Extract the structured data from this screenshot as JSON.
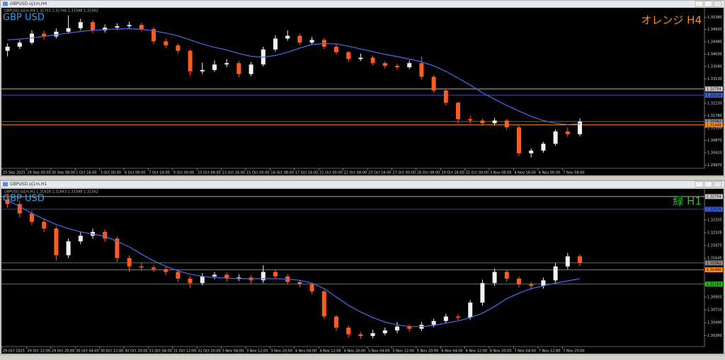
{
  "chart_data": [
    {
      "type": "candlestick",
      "window_title": "GBPUSD.oj1m,H4",
      "info": "GBPUSD.oj1m,H4  1.31701 1.31746 1.31588 1.31562",
      "symbol_label": "GBP USD",
      "annotation": "オレンジ H4",
      "annotation_color": "#ff8c1a",
      "up_color": "#f2f2f2",
      "down_color": "#ff5a1f",
      "ma_color": "#4a6cf0",
      "open": [
        1.3415,
        1.343,
        1.3445,
        1.3478,
        1.3468,
        1.3485,
        1.3498,
        1.352,
        1.349,
        1.35,
        1.3505,
        1.351,
        1.3495,
        1.345,
        1.3435,
        1.3415,
        1.334,
        1.3345,
        1.3365,
        1.337,
        1.333,
        1.3365,
        1.342,
        1.346,
        1.347,
        1.3445,
        1.3455,
        1.343,
        1.341,
        1.3385,
        1.339,
        1.337,
        1.336,
        1.3355,
        1.337,
        1.332,
        1.327,
        1.3225,
        1.3165,
        1.316,
        1.315,
        1.316,
        1.3135,
        1.304,
        1.305,
        1.3075,
        1.312,
        1.311
      ],
      "high": [
        1.3442,
        1.3455,
        1.349,
        1.3488,
        1.3497,
        1.3545,
        1.3532,
        1.3528,
        1.3512,
        1.3516,
        1.3522,
        1.3518,
        1.3502,
        1.346,
        1.3442,
        1.342,
        1.3372,
        1.338,
        1.3385,
        1.3378,
        1.3374,
        1.343,
        1.3472,
        1.349,
        1.3478,
        1.3466,
        1.3462,
        1.3438,
        1.3415,
        1.3405,
        1.3398,
        1.3378,
        1.3368,
        1.338,
        1.3395,
        1.3325,
        1.3276,
        1.323,
        1.3178,
        1.3168,
        1.317,
        1.3166,
        1.3142,
        1.3058,
        1.3082,
        1.3128,
        1.3136,
        1.3168
      ],
      "low": [
        1.3395,
        1.3422,
        1.3438,
        1.3455,
        1.346,
        1.3478,
        1.349,
        1.348,
        1.3482,
        1.3492,
        1.3498,
        1.3486,
        1.344,
        1.3426,
        1.3405,
        1.3325,
        1.333,
        1.3338,
        1.3355,
        1.3318,
        1.3322,
        1.3358,
        1.3412,
        1.3452,
        1.3436,
        1.3438,
        1.3422,
        1.3402,
        1.3375,
        1.3378,
        1.3362,
        1.335,
        1.3345,
        1.3348,
        1.331,
        1.3262,
        1.3215,
        1.315,
        1.3148,
        1.314,
        1.3142,
        1.3125,
        1.303,
        1.3025,
        1.3042,
        1.3068,
        1.31,
        1.3102
      ],
      "close": [
        1.343,
        1.3445,
        1.3478,
        1.3468,
        1.3485,
        1.3498,
        1.352,
        1.349,
        1.35,
        1.3505,
        1.351,
        1.3495,
        1.345,
        1.3435,
        1.3415,
        1.334,
        1.3345,
        1.3365,
        1.337,
        1.333,
        1.3365,
        1.342,
        1.346,
        1.347,
        1.3445,
        1.3455,
        1.343,
        1.341,
        1.3385,
        1.339,
        1.337,
        1.336,
        1.3355,
        1.337,
        1.332,
        1.327,
        1.3225,
        1.3165,
        1.316,
        1.315,
        1.316,
        1.3135,
        1.304,
        1.305,
        1.3075,
        1.312,
        1.311,
        1.3156
      ],
      "ma": [
        1.3455,
        1.3458,
        1.3462,
        1.3468,
        1.3474,
        1.348,
        1.3486,
        1.349,
        1.3493,
        1.3495,
        1.3496,
        1.3494,
        1.3488,
        1.348,
        1.347,
        1.3455,
        1.344,
        1.3428,
        1.3418,
        1.3405,
        1.3395,
        1.3392,
        1.3398,
        1.341,
        1.3425,
        1.3438,
        1.3442,
        1.344,
        1.3432,
        1.3422,
        1.3412,
        1.3402,
        1.3394,
        1.3385,
        1.3375,
        1.336,
        1.334,
        1.3315,
        1.329,
        1.3262,
        1.3238,
        1.3215,
        1.3195,
        1.3175,
        1.316,
        1.315,
        1.3145,
        1.3148
      ],
      "ylim": [
        1.2985,
        1.357
      ],
      "yticks": [
        {
          "value": 1.3538,
          "label": "1.35380"
        },
        {
          "value": 1.3493,
          "label": "1.34930"
        },
        {
          "value": 1.3448,
          "label": "1.34480"
        },
        {
          "value": 1.3403,
          "label": "1.34030"
        },
        {
          "value": 1.3358,
          "label": "1.33580"
        },
        {
          "value": 1.3313,
          "label": "1.33130"
        },
        {
          "value": 1.3223,
          "label": "1.32230"
        },
        {
          "value": 1.3178,
          "label": "1.31780"
        },
        {
          "value": 1.3133,
          "label": "1.31330"
        },
        {
          "value": 1.3087,
          "label": "1.30870"
        },
        {
          "value": 1.3042,
          "label": "1.30420"
        },
        {
          "value": 1.2997,
          "label": "1.29970"
        }
      ],
      "xticks": [
        {
          "value": 0,
          "label": "25 Sep 2025"
        },
        {
          "value": 2,
          "label": "29 Sep 00:00"
        },
        {
          "value": 4,
          "label": "30 Sep 08:00"
        },
        {
          "value": 6,
          "label": "1 Oct 16:00"
        },
        {
          "value": 8,
          "label": "3 Oct 00:00"
        },
        {
          "value": 10,
          "label": "6 Oct 08:00"
        },
        {
          "value": 12,
          "label": "7 Oct 16:00"
        },
        {
          "value": 14,
          "label": "9 Oct 00:00"
        },
        {
          "value": 16,
          "label": "10 Oct 08:00"
        },
        {
          "value": 18,
          "label": "13 Oct 16:00"
        },
        {
          "value": 20,
          "label": "15 Oct 00:00"
        },
        {
          "value": 22,
          "label": "16 Oct 08:00"
        },
        {
          "value": 24,
          "label": "17 Oct 16:00"
        },
        {
          "value": 26,
          "label": "21 Oct 00:00"
        },
        {
          "value": 28,
          "label": "22 Oct 08:00"
        },
        {
          "value": 30,
          "label": "23 Oct 16:00"
        },
        {
          "value": 32,
          "label": "27 Oct 00:00"
        },
        {
          "value": 34,
          "label": "28 Oct 08:00"
        },
        {
          "value": 36,
          "label": "29 Oct 16:00"
        },
        {
          "value": 38,
          "label": "31 Oct 00:00"
        },
        {
          "value": 40,
          "label": "3 Nov 08:00"
        },
        {
          "value": 42,
          "label": "4 Nov 16:00"
        },
        {
          "value": 44,
          "label": "6 Nov 00:00"
        },
        {
          "value": 46,
          "label": "7 Nov 08:00"
        }
      ],
      "levels": [
        {
          "value": 1.32754,
          "color": "#c8c8c8"
        },
        {
          "value": 1.32526,
          "color": "#3a5fd8"
        },
        {
          "value": 1.31562,
          "color": "#8a8a8a"
        },
        {
          "value": 1.3144,
          "label": "1.31440",
          "color": "#ff8c1a"
        }
      ]
    },
    {
      "type": "candlestick",
      "window_title": "GBPUSD.oj1m,H1",
      "info": "GBPUSD.oj1m,H1  1.31618 1.31643 1.31588 1.31562",
      "symbol_label": "GBP USD",
      "annotation": "緑 H1",
      "annotation_color": "#2fbf2f",
      "up_color": "#f2f2f2",
      "down_color": "#ff5a1f",
      "ma_color": "#4a6cf0",
      "open": [
        1.327,
        1.3262,
        1.3245,
        1.323,
        1.3218,
        1.317,
        1.3195,
        1.3205,
        1.3212,
        1.32,
        1.3165,
        1.315,
        1.3148,
        1.3145,
        1.314,
        1.3128,
        1.312,
        1.3132,
        1.3135,
        1.3128,
        1.313,
        1.3125,
        1.314,
        1.3132,
        1.3122,
        1.3118,
        1.3105,
        1.306,
        1.304,
        1.3028,
        1.3025,
        1.303,
        1.3035,
        1.3042,
        1.3038,
        1.3045,
        1.3052,
        1.306,
        1.3058,
        1.3085,
        1.312,
        1.314,
        1.3128,
        1.3118,
        1.3115,
        1.3125,
        1.315,
        1.3168
      ],
      "high": [
        1.328,
        1.3268,
        1.325,
        1.3236,
        1.3222,
        1.32,
        1.3212,
        1.3218,
        1.3216,
        1.3204,
        1.317,
        1.3156,
        1.3152,
        1.315,
        1.3143,
        1.3132,
        1.3138,
        1.314,
        1.3139,
        1.3136,
        1.3134,
        1.3152,
        1.3144,
        1.3136,
        1.3126,
        1.3121,
        1.3108,
        1.3063,
        1.3044,
        1.3032,
        1.3036,
        1.304,
        1.305,
        1.3046,
        1.305,
        1.3056,
        1.3065,
        1.3064,
        1.309,
        1.3126,
        1.3146,
        1.3144,
        1.3132,
        1.3122,
        1.313,
        1.3156,
        1.3174,
        1.3172
      ],
      "low": [
        1.3255,
        1.3238,
        1.3224,
        1.3212,
        1.316,
        1.3165,
        1.319,
        1.32,
        1.3194,
        1.3158,
        1.314,
        1.3142,
        1.314,
        1.3135,
        1.3122,
        1.3112,
        1.3116,
        1.3127,
        1.3122,
        1.3124,
        1.3119,
        1.312,
        1.3127,
        1.3117,
        1.3112,
        1.31,
        1.3055,
        1.3034,
        1.3022,
        1.302,
        1.3021,
        1.3026,
        1.303,
        1.3033,
        1.3034,
        1.3041,
        1.3048,
        1.3053,
        1.3054,
        1.308,
        1.3115,
        1.3122,
        1.3112,
        1.3108,
        1.311,
        1.312,
        1.3145,
        1.315
      ],
      "close": [
        1.3262,
        1.3245,
        1.323,
        1.3218,
        1.317,
        1.3195,
        1.3205,
        1.3212,
        1.32,
        1.3165,
        1.315,
        1.3148,
        1.3145,
        1.314,
        1.3128,
        1.312,
        1.3132,
        1.3135,
        1.3128,
        1.313,
        1.3125,
        1.314,
        1.3132,
        1.3122,
        1.3118,
        1.3105,
        1.306,
        1.304,
        1.3028,
        1.3025,
        1.303,
        1.3035,
        1.3042,
        1.3038,
        1.3045,
        1.3052,
        1.306,
        1.3058,
        1.3085,
        1.312,
        1.314,
        1.3128,
        1.3118,
        1.3115,
        1.3125,
        1.315,
        1.3168,
        1.3156
      ],
      "ma": [
        1.3268,
        1.3258,
        1.3245,
        1.3235,
        1.3225,
        1.3218,
        1.3212,
        1.3208,
        1.3204,
        1.3195,
        1.3185,
        1.3172,
        1.316,
        1.315,
        1.3142,
        1.3136,
        1.3132,
        1.313,
        1.3129,
        1.3128,
        1.3128,
        1.3128,
        1.3128,
        1.3127,
        1.3125,
        1.312,
        1.311,
        1.3095,
        1.308,
        1.3068,
        1.3058,
        1.305,
        1.3045,
        1.3042,
        1.3042,
        1.3044,
        1.3048,
        1.3052,
        1.3058,
        1.3066,
        1.3078,
        1.3092,
        1.3102,
        1.311,
        1.3115,
        1.312,
        1.3124,
        1.3128
      ],
      "ylim": [
        1.3006,
        1.3288
      ],
      "yticks": [
        1.32335,
        1.32105,
        1.31875,
        1.31645,
        1.31415,
        {
          "value": 1.3118,
          "label": "1.31180"
        },
        {
          "value": 1.3095,
          "label": "1.30950"
        },
        {
          "value": 1.3072,
          "label": "1.30720"
        },
        {
          "value": 1.3049,
          "label": "1.30490"
        },
        {
          "value": 1.3026,
          "label": "1.30260"
        }
      ],
      "xticks": [
        {
          "value": 0,
          "label": "29 Oct 2025"
        },
        {
          "value": 2,
          "label": "29 Oct 12:00"
        },
        {
          "value": 4,
          "label": "29 Oct 20:00"
        },
        {
          "value": 6,
          "label": "30 Oct 04:00"
        },
        {
          "value": 8,
          "label": "30 Oct 12:00"
        },
        {
          "value": 10,
          "label": "30 Oct 20:00"
        },
        {
          "value": 12,
          "label": "31 Oct 04:00"
        },
        {
          "value": 14,
          "label": "31 Oct 12:00"
        },
        {
          "value": 16,
          "label": "31 Oct 20:00"
        },
        {
          "value": 18,
          "label": "3 Nov 04:00"
        },
        {
          "value": 20,
          "label": "3 Nov 12:00"
        },
        {
          "value": 22,
          "label": "3 Nov 20:00"
        },
        {
          "value": 24,
          "label": "4 Nov 04:00"
        },
        {
          "value": 26,
          "label": "4 Nov 12:00"
        },
        {
          "value": 28,
          "label": "4 Nov 20:00"
        },
        {
          "value": 30,
          "label": "5 Nov 04:00"
        },
        {
          "value": 32,
          "label": "5 Nov 12:00"
        },
        {
          "value": 34,
          "label": "5 Nov 20:00"
        },
        {
          "value": 36,
          "label": "6 Nov 04:00"
        },
        {
          "value": 38,
          "label": "6 Nov 12:00"
        },
        {
          "value": 40,
          "label": "6 Nov 20:00"
        },
        {
          "value": 42,
          "label": "7 Nov 04:00"
        },
        {
          "value": 44,
          "label": "7 Nov 12:00"
        },
        {
          "value": 46,
          "label": "7 Nov 20:00"
        }
      ],
      "levels": [
        {
          "value": 1.32754,
          "color": "#c8c8c8"
        },
        {
          "value": 1.32526,
          "color": "#3a5fd8"
        },
        {
          "value": 1.31562,
          "color": "#8a8a8a"
        },
        {
          "value": 1.3144,
          "label": "1.31440",
          "color": "#ff8c1a"
        },
        {
          "value": 1.31182,
          "color": "#2fae2f"
        }
      ]
    }
  ]
}
